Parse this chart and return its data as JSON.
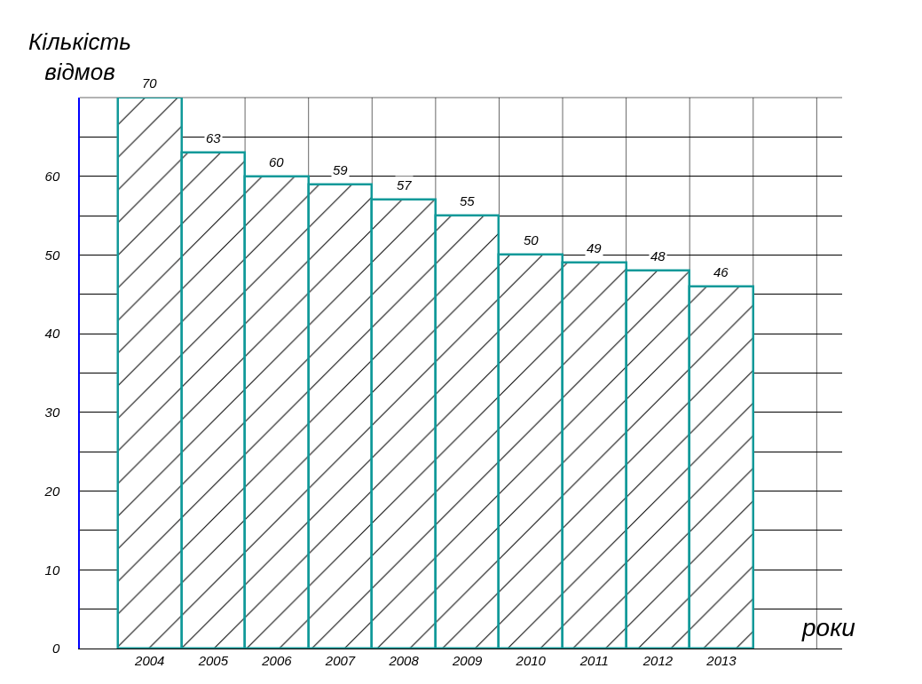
{
  "chart_data": {
    "type": "bar",
    "xlabel": "роки",
    "ylabel": "Кількість відмов",
    "categories": [
      "2004",
      "2005",
      "2006",
      "2007",
      "2008",
      "2009",
      "2010",
      "2011",
      "2012",
      "2013"
    ],
    "values": [
      70,
      63,
      60,
      59,
      57,
      55,
      50,
      49,
      48,
      46
    ],
    "color": "#119999",
    "data_labels": true,
    "grid": true,
    "ylim": [
      0,
      70
    ],
    "yticks": [
      0,
      {
        "value": 5,
        "label": null
      },
      10,
      {
        "value": 15,
        "label": null
      },
      20,
      {
        "value": 25,
        "label": null
      },
      30,
      {
        "value": 35,
        "label": null
      },
      40,
      {
        "value": 45,
        "label": null
      },
      50,
      {
        "value": 55,
        "label": null
      },
      60,
      {
        "value": 65,
        "label": null
      }
    ]
  }
}
